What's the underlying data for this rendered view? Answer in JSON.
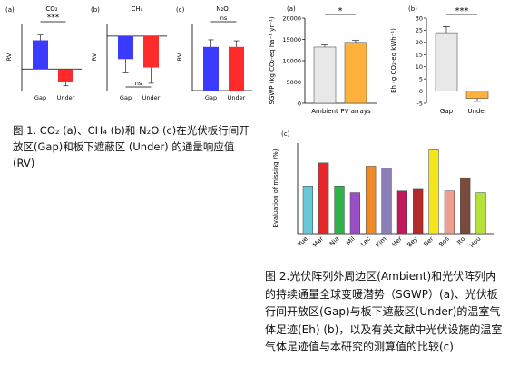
{
  "figure1": {
    "caption": "图 1. CO₂ (a)、CH₄ (b)和 N₂O (c)在光伏板行间开放区(Gap)和板下遮蔽区 (Under) 的通量响应值 (RV)",
    "panels": [
      {
        "tag": "(a)",
        "title": "CO₂",
        "ylabel": "RV",
        "chart_data": {
          "type": "bar",
          "categories": [
            "Gap",
            "Under"
          ],
          "values": [
            1.2,
            -0.55
          ],
          "errors": [
            0.22,
            0.15
          ],
          "ylim": [
            -0.9,
            1.9
          ],
          "significance": "***",
          "colors": [
            "#3b3bff",
            "#ff2a2a"
          ]
        }
      },
      {
        "tag": "(b)",
        "title": "CH₄",
        "ylabel": "RV",
        "chart_data": {
          "type": "bar",
          "categories": [
            "Gap",
            "Under"
          ],
          "values": [
            -1.1,
            -1.5
          ],
          "errors": [
            0.65,
            0.75
          ],
          "ylim": [
            -2.6,
            0.6
          ],
          "significance": "ns",
          "colors": [
            "#3b3bff",
            "#ff2a2a"
          ]
        }
      },
      {
        "tag": "(c)",
        "title": "N₂O",
        "ylabel": "RV",
        "chart_data": {
          "type": "bar",
          "categories": [
            "Gap",
            "Under"
          ],
          "values": [
            4.3,
            4.3
          ],
          "errors": [
            0.7,
            0.6
          ],
          "ylim": [
            0,
            6.6
          ],
          "significance": "ns",
          "colors": [
            "#3b3bff",
            "#ff2a2a"
          ]
        }
      }
    ]
  },
  "figure2": {
    "caption": "图 2.光伏阵列外周边区(Ambient)和光伏阵列内的持续通量全球变暖潜势（SGWP）(a)、光伏板行间开放区(Gap)与板下遮蔽区(Under)的温室气体足迹(Eh) (b)，以及有关文献中光伏设施的温室气体足迹值与本研究的测算值的比较(c)",
    "panel_a": {
      "tag": "(a)",
      "ylabel": "SGWP (kg CO₂-eq ha⁻¹ yr⁻¹)",
      "chart_data": {
        "type": "bar",
        "categories": [
          "Ambient",
          "PV arrays"
        ],
        "values": [
          13200,
          14300
        ],
        "errors": [
          500,
          450
        ],
        "ylim": [
          0,
          20000
        ],
        "yticks": [
          0,
          5000,
          10000,
          15000,
          20000
        ],
        "significance": "*",
        "colors": [
          "#e8e8e8",
          "#ffb13b"
        ]
      }
    },
    "panel_b": {
      "tag": "(b)",
      "ylabel": "Eh (g CO₂-eq kWh⁻¹)",
      "chart_data": {
        "type": "bar",
        "categories": [
          "Gap",
          "Under"
        ],
        "values": [
          24,
          -3
        ],
        "errors": [
          2.5,
          1.2
        ],
        "ylim": [
          -5,
          30
        ],
        "yticks": [
          -5,
          0,
          5,
          10,
          15,
          20,
          25,
          30
        ],
        "significance": "***",
        "colors": [
          "#e8e8e8",
          "#ffb13b"
        ]
      }
    },
    "panel_c": {
      "tag": "(c)",
      "ylabel": "Evaluation of missing (%)",
      "chart_data": {
        "type": "bar",
        "categories": [
          "Yue",
          "Mar",
          "Nia",
          "Mil",
          "Lec",
          "Kim",
          "Her",
          "Bey",
          "Ber",
          "Bos",
          "Ito",
          "Hou"
        ],
        "values": [
          29,
          43,
          29,
          25,
          41,
          40,
          26,
          27,
          51,
          26,
          34,
          25
        ],
        "colors": [
          "#66c8d8",
          "#e8262a",
          "#2db34a",
          "#9a4fc4",
          "#f08a24",
          "#8c7fb8",
          "#c2185b",
          "#b22a2a",
          "#f5e61a",
          "#ef9f8d",
          "#7a4a3a",
          "#b6e13a"
        ],
        "ylim": [
          0,
          55
        ]
      }
    }
  }
}
